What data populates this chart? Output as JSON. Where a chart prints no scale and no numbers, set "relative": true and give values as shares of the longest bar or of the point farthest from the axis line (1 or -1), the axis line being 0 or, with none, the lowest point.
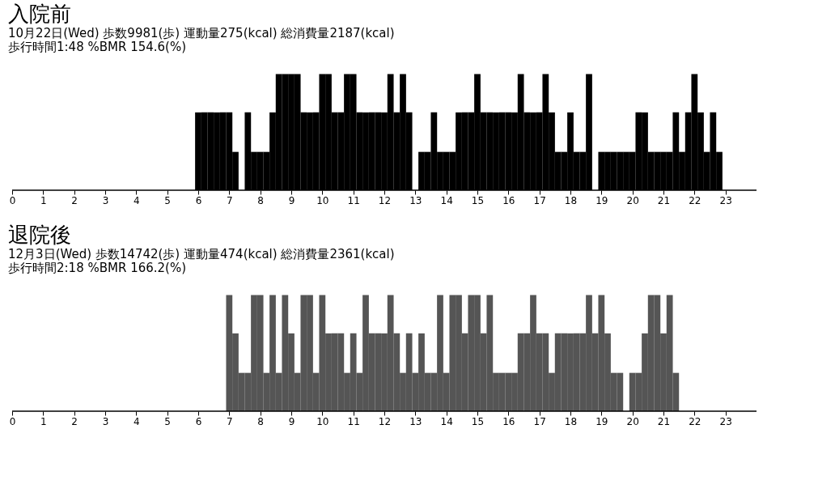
{
  "chart_data": [
    {
      "type": "bar",
      "title": "入院前",
      "subtitle": "10月22日(Wed) 歩数9981(歩) 運動量275(kcal) 総消費量2187(kcal)\n歩行時間1:48 %BMR 154.6(%)",
      "relative": true,
      "xlim": [
        0,
        24
      ],
      "xticks": [
        0,
        1,
        2,
        3,
        4,
        5,
        6,
        7,
        8,
        9,
        10,
        11,
        12,
        13,
        14,
        15,
        16,
        17,
        18,
        19,
        20,
        21,
        22,
        23
      ],
      "grid": false,
      "x": [
        5.8,
        6.0,
        6.2,
        6.4,
        6.6,
        6.8,
        7.0,
        7.2,
        7.4,
        7.6,
        7.8,
        8.0,
        8.2,
        8.4,
        8.6,
        8.8,
        9.0,
        9.2,
        9.4,
        9.6,
        9.8,
        10.0,
        10.2,
        10.4,
        10.6,
        10.8,
        11.0,
        11.2,
        11.4,
        11.6,
        11.8,
        12.0,
        12.2,
        12.4,
        12.6,
        12.8,
        13.0,
        13.2,
        13.4,
        13.6,
        13.8,
        14.0,
        14.2,
        14.4,
        14.6,
        14.8,
        15.0,
        15.2,
        15.4,
        15.6,
        15.8,
        16.0,
        16.2,
        16.4,
        16.6,
        16.8,
        17.0,
        17.2,
        17.4,
        17.6,
        17.8,
        18.0,
        18.2,
        18.4,
        18.6,
        18.8,
        19.0,
        19.2,
        19.4,
        19.6,
        19.8,
        20.0,
        20.2,
        20.4,
        20.6,
        20.8,
        21.0,
        21.2,
        21.4,
        21.6,
        21.8,
        22.0,
        22.2,
        22.4,
        22.6,
        22.8,
        23.0
      ],
      "series": [
        {
          "color": "#000000",
          "values": [
            0,
            0.67,
            0.67,
            0.67,
            0.67,
            0.67,
            0.67,
            0.33,
            0,
            0.67,
            0.33,
            0.33,
            0.33,
            0.67,
            1,
            1,
            1,
            1,
            0.67,
            0.67,
            0.67,
            1,
            1,
            0.67,
            0.67,
            1,
            1,
            0.67,
            0.67,
            0.67,
            0.67,
            0.67,
            1,
            0.67,
            1,
            0.67,
            0,
            0.33,
            0.33,
            0.67,
            0.33,
            0.33,
            0.33,
            0.67,
            0.67,
            0.67,
            1,
            0.67,
            0.67,
            0.67,
            0.67,
            0.67,
            0.67,
            1,
            0.67,
            0.67,
            0.67,
            1,
            0.67,
            0.33,
            0.33,
            0.67,
            0.33,
            0.33,
            1,
            0,
            0.33,
            0.33,
            0.33,
            0.33,
            0.33,
            0.33,
            0.67,
            0.67,
            0.33,
            0.33,
            0.33,
            0.33,
            0.67,
            0.33,
            0.67,
            1,
            0.67,
            0.33,
            0.67,
            0.33,
            0
          ]
        }
      ]
    },
    {
      "type": "bar",
      "title": "退院後",
      "subtitle": "12月3日(Wed) 歩数14742(歩) 運動量474(kcal) 総消費量2361(kcal)\n歩行時間2:18 %BMR 166.2(%)",
      "relative": true,
      "xlim": [
        0,
        24
      ],
      "xticks": [
        0,
        1,
        2,
        3,
        4,
        5,
        6,
        7,
        8,
        9,
        10,
        11,
        12,
        13,
        14,
        15,
        16,
        17,
        18,
        19,
        20,
        21,
        22,
        23
      ],
      "grid": false,
      "x": [
        7.0,
        7.2,
        7.4,
        7.6,
        7.8,
        8.0,
        8.2,
        8.4,
        8.6,
        8.8,
        9.0,
        9.2,
        9.4,
        9.6,
        9.8,
        10.0,
        10.2,
        10.4,
        10.6,
        10.8,
        11.0,
        11.2,
        11.4,
        11.6,
        11.8,
        12.0,
        12.2,
        12.4,
        12.6,
        12.8,
        13.0,
        13.2,
        13.4,
        13.6,
        13.8,
        14.0,
        14.2,
        14.4,
        14.6,
        14.8,
        15.0,
        15.2,
        15.4,
        15.6,
        15.8,
        16.0,
        16.2,
        16.4,
        16.6,
        16.8,
        17.0,
        17.2,
        17.4,
        17.6,
        17.8,
        18.0,
        18.2,
        18.4,
        18.6,
        18.8,
        19.0,
        19.2,
        19.4,
        19.6,
        19.8,
        20.0,
        20.2,
        20.4,
        20.6,
        20.8,
        21.0,
        21.2,
        21.4
      ],
      "series": [
        {
          "color": "#555555",
          "values": [
            1,
            0.67,
            0.33,
            0.33,
            1,
            1,
            0.33,
            1,
            0.33,
            1,
            0.67,
            0.33,
            1,
            1,
            0.33,
            1,
            0.67,
            0.67,
            0.67,
            0.33,
            0.67,
            0.33,
            1,
            0.67,
            0.67,
            0.67,
            1,
            0.67,
            0.33,
            0.67,
            0.33,
            0.67,
            0.33,
            0.33,
            1,
            0.33,
            1,
            1,
            0.67,
            1,
            1,
            0.67,
            1,
            0.33,
            0.33,
            0.33,
            0.33,
            0.67,
            0.67,
            1,
            0.67,
            0.67,
            0.33,
            0.67,
            0.67,
            0.67,
            0.67,
            0.67,
            1,
            0.67,
            1,
            0.67,
            0.33,
            0.33,
            0,
            0.33,
            0.33,
            0.67,
            1,
            1,
            0.67,
            1,
            0.33
          ]
        }
      ]
    }
  ]
}
